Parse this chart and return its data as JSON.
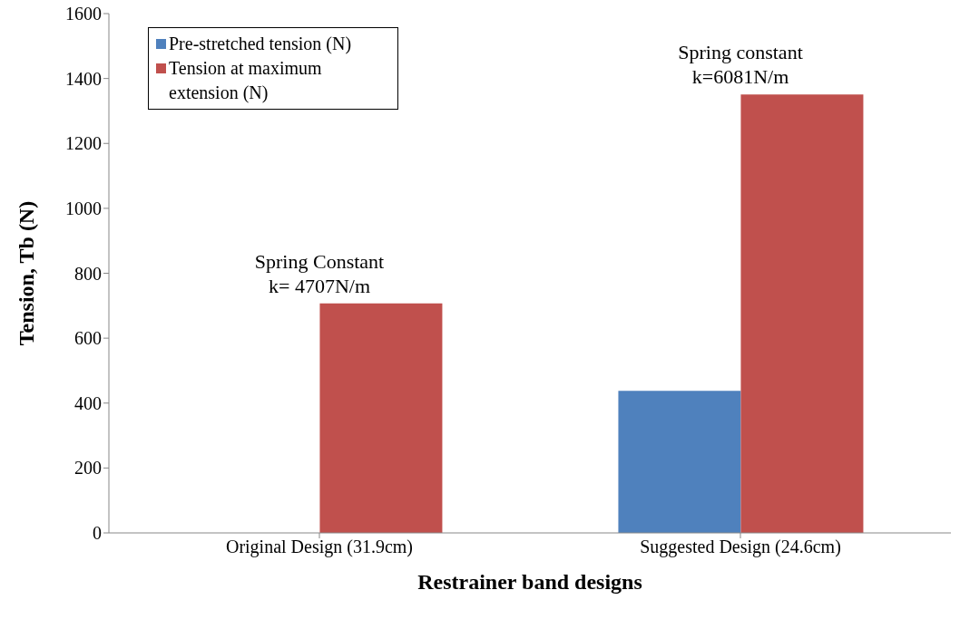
{
  "chart_data": {
    "type": "bar",
    "xlabel": "Restrainer band designs",
    "ylabel": "Tension, Tb (N)",
    "categories": [
      "Original Design (31.9cm)",
      "Suggested Design (24.6cm)"
    ],
    "series": [
      {
        "name": "Pre-stretched tension (N)",
        "color": "#4f81bd",
        "values": [
          0,
          438
        ]
      },
      {
        "name": "Tension at maximum extension (N)",
        "color": "#c0504d",
        "values": [
          707,
          1351
        ]
      }
    ],
    "ylim": [
      0,
      1600
    ],
    "yticks": [
      0,
      200,
      400,
      600,
      800,
      1000,
      1200,
      1400,
      1600
    ],
    "grid": false,
    "legend": "top left",
    "annotations": [
      {
        "text": "Spring Constant\nk= 4707N/m",
        "x": "Original Design (31.9cm)",
        "y": 707
      },
      {
        "text": "Spring constant\nk=6081N/m",
        "x": "Suggested Design (24.6cm)",
        "y": 1351
      }
    ]
  }
}
